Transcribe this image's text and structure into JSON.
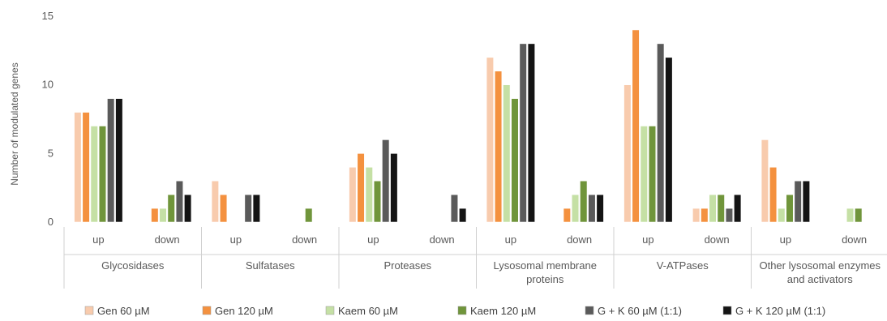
{
  "chart_data": {
    "type": "bar",
    "ylabel": "Number of modulated genes",
    "ylim": [
      0,
      15
    ],
    "yticks": [
      0,
      5,
      10,
      15
    ],
    "grid": false,
    "legend_position": "bottom",
    "groups": [
      {
        "label": [
          "Glycosidases"
        ],
        "subcategories": [
          "up",
          "down"
        ]
      },
      {
        "label": [
          "Sulfatases"
        ],
        "subcategories": [
          "up",
          "down"
        ]
      },
      {
        "label": [
          "Proteases"
        ],
        "subcategories": [
          "up",
          "down"
        ]
      },
      {
        "label": [
          "Lysosomal membrane",
          "proteins"
        ],
        "subcategories": [
          "up",
          "down"
        ]
      },
      {
        "label": [
          "V-ATPases"
        ],
        "subcategories": [
          "up",
          "down"
        ]
      },
      {
        "label": [
          "Other lysosomal enzymes",
          "and activators"
        ],
        "subcategories": [
          "up",
          "down"
        ]
      }
    ],
    "series": [
      {
        "name": "Gen  60 µM",
        "color": "#F8CBAD",
        "values": [
          8,
          0,
          3,
          0,
          4,
          0,
          12,
          0,
          10,
          1,
          6,
          0
        ]
      },
      {
        "name": "Gen  120 µM",
        "color": "#F4913F",
        "values": [
          8,
          1,
          2,
          0,
          5,
          0,
          11,
          1,
          14,
          1,
          4,
          0
        ]
      },
      {
        "name": "Kaem  60 µM",
        "color": "#C5E0A5",
        "values": [
          7,
          1,
          0,
          0,
          4,
          0,
          10,
          2,
          7,
          2,
          1,
          1
        ]
      },
      {
        "name": "Kaem  120 µM",
        "color": "#70953B",
        "values": [
          7,
          2,
          0,
          1,
          3,
          0,
          9,
          3,
          7,
          2,
          2,
          1
        ]
      },
      {
        "name": "G + K  60 µM (1:1)",
        "color": "#5A5A5A",
        "values": [
          9,
          3,
          2,
          0,
          6,
          2,
          13,
          2,
          13,
          1,
          3,
          0
        ]
      },
      {
        "name": "G + K  120 µM (1:1)",
        "color": "#141414",
        "values": [
          9,
          2,
          2,
          0,
          5,
          1,
          13,
          2,
          12,
          2,
          3,
          0
        ]
      }
    ]
  }
}
